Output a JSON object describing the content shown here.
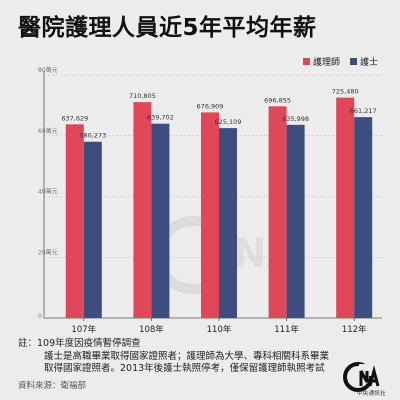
{
  "title": "醫院護理人員近5年平均年薪",
  "legend": [
    {
      "label": "護理師",
      "color": "#e0485a"
    },
    {
      "label": "護士",
      "color": "#3d4e7e"
    }
  ],
  "notes": {
    "line1": "註：109年度因疫情暫停調查",
    "line2": "護士是高職畢業取得國家證照者；護理師為大學、專科相關科系畢業",
    "line3": "取得國家證照者。2013年後護士執照停考，僅保留護理師執照考試"
  },
  "source": "資料來源：衛福部",
  "logo": {
    "text": "中央通訊社",
    "icon": "cna-logo-icon"
  },
  "watermark": "CNA",
  "chart_data": {
    "type": "bar",
    "categories": [
      "107年",
      "108年",
      "110年",
      "111年",
      "112年"
    ],
    "series": [
      {
        "name": "護理師",
        "color": "#e0485a",
        "values": [
          637629,
          710805,
          676909,
          696855,
          725480
        ],
        "labels": [
          "637,629",
          "710,805",
          "676,909",
          "696,855",
          "725,480"
        ]
      },
      {
        "name": "護士",
        "color": "#3d4e7e",
        "values": [
          580273,
          639702,
          625109,
          635998,
          661217
        ],
        "labels": [
          "580,273",
          "639,702",
          "625,109",
          "635,998",
          "661,217"
        ]
      }
    ],
    "ylim": [
      0,
      800000
    ],
    "yticks": [
      {
        "value": 0,
        "label": "0"
      },
      {
        "value": 200000,
        "label": "20萬元"
      },
      {
        "value": 400000,
        "label": "40萬元"
      },
      {
        "value": 600000,
        "label": "60萬元"
      },
      {
        "value": 800000,
        "label": "80萬元"
      }
    ],
    "grid": true,
    "legend_position": "top-right"
  }
}
